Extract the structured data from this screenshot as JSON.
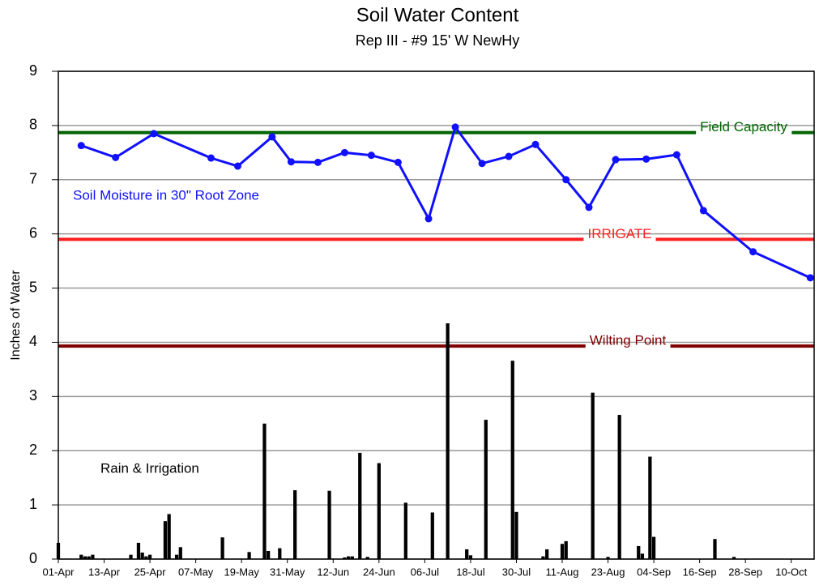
{
  "chart_data": {
    "type": "combo",
    "title": "Soil Water Content",
    "subtitle": "Rep III - #9 15' W NewHy",
    "y_label": "Inches of Water",
    "xlim": [
      0,
      198
    ],
    "xticks": [
      {
        "value": 0,
        "label": "01-Apr"
      },
      {
        "value": 12,
        "label": "13-Apr"
      },
      {
        "value": 24,
        "label": "25-Apr"
      },
      {
        "value": 36,
        "label": "07-May"
      },
      {
        "value": 48,
        "label": "19-May"
      },
      {
        "value": 60,
        "label": "31-May"
      },
      {
        "value": 72,
        "label": "12-Jun"
      },
      {
        "value": 84,
        "label": "24-Jun"
      },
      {
        "value": 96,
        "label": "06-Jul"
      },
      {
        "value": 108,
        "label": "18-Jul"
      },
      {
        "value": 120,
        "label": "30-Jul"
      },
      {
        "value": 132,
        "label": "11-Aug"
      },
      {
        "value": 144,
        "label": "23-Aug"
      },
      {
        "value": 156,
        "label": "04-Sep"
      },
      {
        "value": 168,
        "label": "16-Sep"
      },
      {
        "value": 180,
        "label": "28-Sep"
      },
      {
        "value": 192,
        "label": "10-Oct"
      }
    ],
    "ylim": [
      0,
      9
    ],
    "yticks": [
      0,
      1,
      2,
      3,
      4,
      5,
      6,
      7,
      8,
      9
    ],
    "grid": true,
    "reference_lines": [
      {
        "name": "Field Capacity",
        "value": 7.87,
        "color": "#006400"
      },
      {
        "name": "IRRIGATE",
        "value": 5.9,
        "color": "#ff2020"
      },
      {
        "name": "Wilting Point",
        "value": 3.93,
        "color": "#800000"
      }
    ],
    "series": [
      {
        "name": "Soil Moisture in 30\" Root Zone",
        "type": "line",
        "color": "#1010ff",
        "x": [
          6,
          15,
          25,
          40,
          47,
          56,
          61,
          68,
          75,
          82,
          89,
          97,
          104,
          111,
          118,
          125,
          133,
          139,
          146,
          154,
          162,
          169,
          182,
          197
        ],
        "values": [
          7.63,
          7.41,
          7.85,
          7.4,
          7.25,
          7.79,
          7.33,
          7.32,
          7.5,
          7.45,
          7.32,
          6.28,
          7.97,
          7.3,
          7.43,
          7.65,
          7.0,
          6.49,
          7.37,
          7.38,
          7.46,
          6.43,
          5.67,
          5.19
        ]
      },
      {
        "name": "Rain & Irrigation",
        "type": "bar",
        "color": "#000000",
        "x": [
          0,
          6,
          7,
          8,
          9,
          19,
          21,
          22,
          23,
          24,
          28,
          29,
          31,
          32,
          43,
          50,
          54,
          55,
          58,
          62,
          71,
          75,
          76,
          77,
          79,
          81,
          84,
          91,
          98,
          102,
          107,
          108,
          112,
          119,
          120,
          127,
          128,
          132,
          133,
          140,
          144,
          147,
          152,
          153,
          155,
          156,
          172,
          177
        ],
        "values": [
          0.3,
          0.08,
          0.05,
          0.05,
          0.08,
          0.08,
          0.3,
          0.12,
          0.05,
          0.08,
          0.7,
          0.83,
          0.08,
          0.22,
          0.4,
          0.13,
          2.5,
          0.15,
          0.2,
          1.27,
          1.26,
          0.03,
          0.05,
          0.05,
          1.96,
          0.04,
          1.77,
          1.04,
          0.86,
          4.35,
          0.18,
          0.07,
          2.57,
          3.66,
          0.87,
          0.05,
          0.18,
          0.28,
          0.33,
          3.07,
          0.04,
          2.66,
          0.24,
          0.1,
          1.89,
          0.41,
          0.37,
          0.04
        ]
      }
    ]
  }
}
